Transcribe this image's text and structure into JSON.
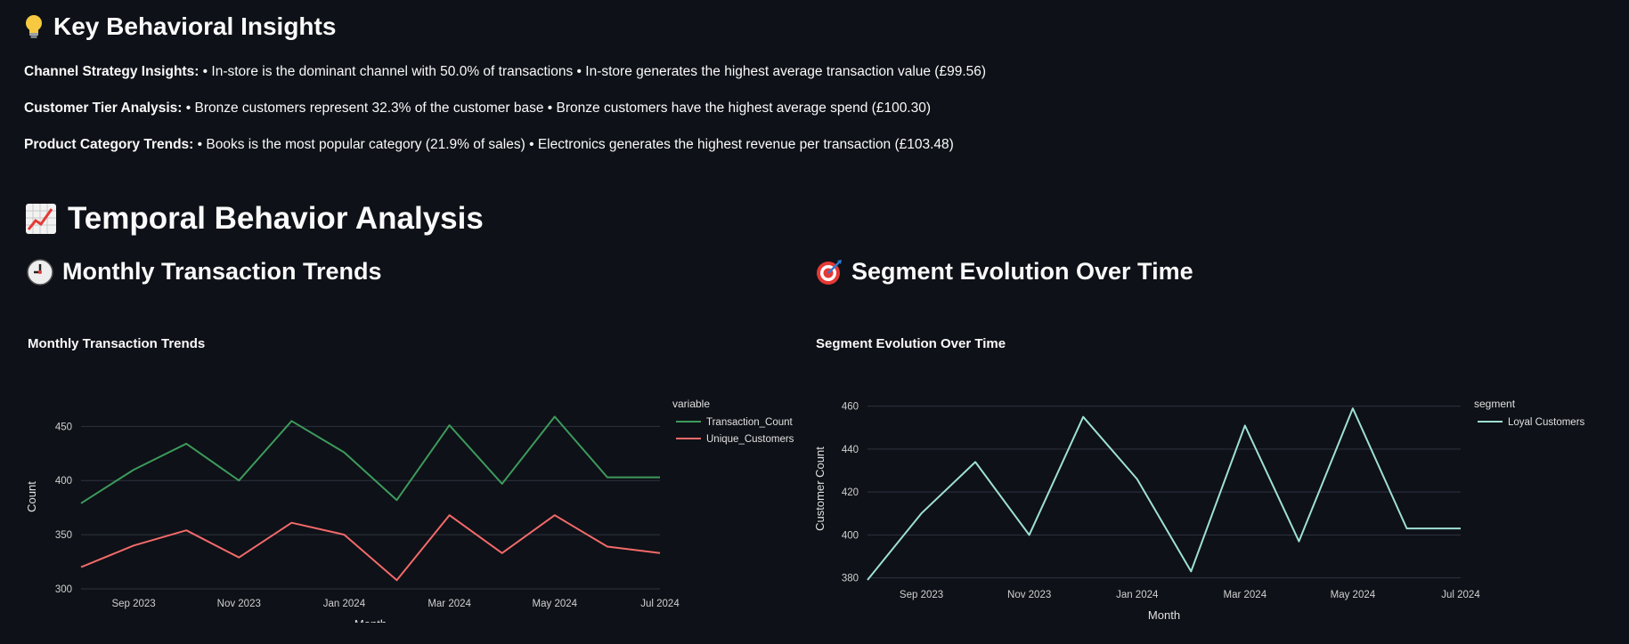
{
  "insights_section": {
    "icon": "lightbulb-icon",
    "title": "Key Behavioral Insights",
    "items": [
      {
        "label": "Channel Strategy Insights:",
        "text": " • In-store is the dominant channel with 50.0% of transactions • In-store generates the highest average transaction value (£99.56)"
      },
      {
        "label": "Customer Tier Analysis:",
        "text": " • Bronze customers represent 32.3% of the customer base • Bronze customers have the highest average spend (£100.30)"
      },
      {
        "label": "Product Category Trends:",
        "text": " • Books is the most popular category (21.9% of sales) • Electronics generates the highest revenue per transaction (£103.48)"
      }
    ]
  },
  "temporal_section": {
    "icon": "chart-increasing-icon",
    "title": "Temporal Behavior Analysis"
  },
  "left_panel": {
    "icon": "clock-icon",
    "title": "Monthly Transaction Trends"
  },
  "right_panel": {
    "icon": "target-icon",
    "title": "Segment Evolution Over Time"
  },
  "colors": {
    "background": "#0e1117",
    "green": "#3d9a5c",
    "red": "#f26a6a",
    "teal": "#9ee0d6",
    "grid": "#2e3340"
  },
  "chart_data": [
    {
      "type": "line",
      "title": "Monthly Transaction Trends",
      "xlabel": "Month",
      "ylabel": "Count",
      "legend_title": "variable",
      "legend_position": "right",
      "grid": true,
      "x": [
        "2023-08",
        "2023-09",
        "2023-10",
        "2023-11",
        "2023-12",
        "2024-01",
        "2024-02",
        "2024-03",
        "2024-04",
        "2024-05",
        "2024-06",
        "2024-07"
      ],
      "xticks": [
        "Sep 2023",
        "Nov 2023",
        "Jan 2024",
        "Mar 2024",
        "May 2024",
        "Jul 2024"
      ],
      "yticks": [
        300,
        350,
        400,
        450
      ],
      "ylim": [
        300,
        470
      ],
      "series": [
        {
          "name": "Transaction_Count",
          "color": "#3d9a5c",
          "values": [
            379,
            410,
            434,
            400,
            455,
            426,
            382,
            451,
            397,
            459,
            403,
            403
          ]
        },
        {
          "name": "Unique_Customers",
          "color": "#f26a6a",
          "values": [
            320,
            340,
            354,
            329,
            361,
            350,
            308,
            368,
            333,
            368,
            339,
            333
          ]
        }
      ]
    },
    {
      "type": "line",
      "title": "Segment Evolution Over Time",
      "xlabel": "Month",
      "ylabel": "Customer Count",
      "legend_title": "segment",
      "legend_position": "right",
      "grid": true,
      "x": [
        "2023-08",
        "2023-09",
        "2023-10",
        "2023-11",
        "2023-12",
        "2024-01",
        "2024-02",
        "2024-03",
        "2024-04",
        "2024-05",
        "2024-06",
        "2024-07"
      ],
      "xticks": [
        "Sep 2023",
        "Nov 2023",
        "Jan 2024",
        "Mar 2024",
        "May 2024",
        "Jul 2024"
      ],
      "yticks": [
        380,
        400,
        420,
        440,
        460
      ],
      "ylim": [
        379,
        464
      ],
      "series": [
        {
          "name": "Loyal Customers",
          "color": "#9ee0d6",
          "values": [
            379,
            410,
            434,
            400,
            455,
            426,
            383,
            451,
            397,
            459,
            403,
            403
          ]
        }
      ]
    }
  ]
}
